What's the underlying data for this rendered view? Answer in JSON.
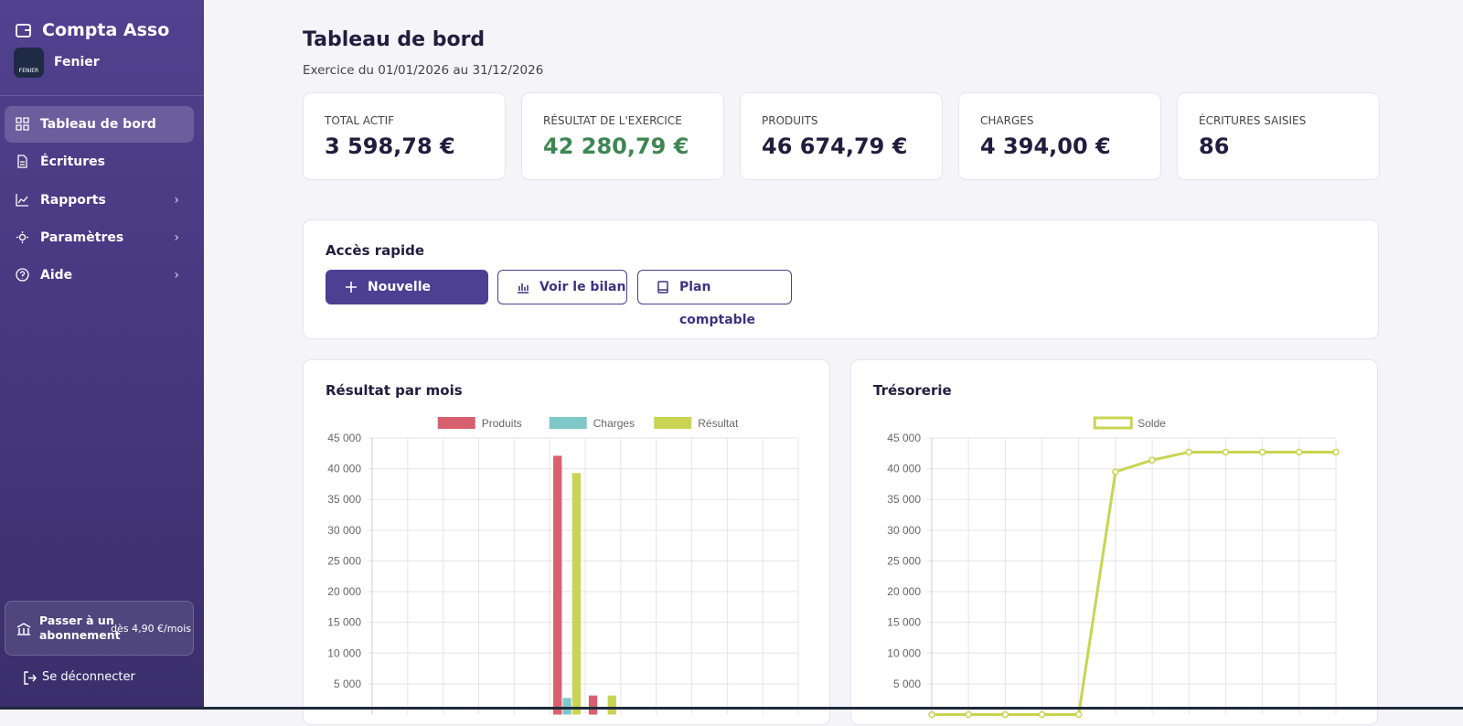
{
  "sidebar": {
    "brand": "Compta Asso",
    "org": "Fenier",
    "logo": "FENIER",
    "nav": [
      "Tableau de bord",
      "Écritures",
      "Rapports",
      "Paramètres",
      "Aide"
    ],
    "upgrade": {
      "title": "Passer à un abonnement",
      "price": "dès 4,90 €/mois"
    },
    "logout": "Se déconnecter"
  },
  "header": {
    "title": "Tableau de bord",
    "subtitle": "Exercice du 01/01/2026 au 31/12/2026"
  },
  "stats": [
    {
      "label": "TOTAL ACTIF",
      "value": "3 598,78 €"
    },
    {
      "label": "RÉSULTAT DE L'EXERCICE",
      "value": "42 280,79 €"
    },
    {
      "label": "PRODUITS",
      "value": "46 674,79 €"
    },
    {
      "label": "CHARGES",
      "value": "4 394,00 €"
    },
    {
      "label": "ÉCRITURES SAISIES",
      "value": "86"
    }
  ],
  "quick": {
    "title": "Accès rapide",
    "buttons": [
      "Nouvelle écriture",
      "Voir le bilan",
      "Plan comptable"
    ]
  },
  "chart_data": [
    {
      "type": "bar",
      "title": "Résultat par mois",
      "categories": [
        null,
        null,
        null,
        null,
        null,
        null,
        null,
        null,
        null,
        null,
        null,
        null
      ],
      "series": [
        {
          "name": "Produits",
          "color": "#d8606e",
          "values": [
            0,
            0,
            0,
            0,
            0,
            42100,
            3100,
            0,
            0,
            0,
            0,
            0
          ]
        },
        {
          "name": "Charges",
          "color": "#7ec8c9",
          "values": [
            0,
            0,
            0,
            0,
            0,
            2700,
            0,
            0,
            0,
            0,
            0,
            0
          ]
        },
        {
          "name": "Résultat",
          "color": "#c9d452",
          "values": [
            0,
            0,
            0,
            0,
            0,
            39300,
            3100,
            0,
            0,
            0,
            0,
            0
          ]
        }
      ],
      "ylim": [
        0,
        45000
      ],
      "yticks": [
        {
          "value": 5000,
          "label": "5 000"
        },
        {
          "value": 10000,
          "label": "10 000"
        },
        {
          "value": 15000,
          "label": "15 000"
        },
        {
          "value": 20000,
          "label": "20 000"
        },
        {
          "value": 25000,
          "label": "25 000"
        },
        {
          "value": 30000,
          "label": "30 000"
        },
        {
          "value": 35000,
          "label": "35 000"
        },
        {
          "value": 40000,
          "label": "40 000"
        },
        {
          "value": 45000,
          "label": "45 000"
        }
      ],
      "grid": true
    },
    {
      "type": "line",
      "title": "Trésorerie",
      "categories": [
        null,
        null,
        null,
        null,
        null,
        null,
        null,
        null,
        null,
        null,
        null,
        null
      ],
      "series": [
        {
          "name": "Solde",
          "color": "#c9d452",
          "values": [
            0,
            0,
            0,
            0,
            0,
            39500,
            41400,
            42700,
            42700,
            42700,
            42700,
            42700
          ]
        }
      ],
      "ylim": [
        0,
        45000
      ],
      "yticks": [
        {
          "value": 5000,
          "label": "5 000"
        },
        {
          "value": 10000,
          "label": "10 000"
        },
        {
          "value": 15000,
          "label": "15 000"
        },
        {
          "value": 20000,
          "label": "20 000"
        },
        {
          "value": 25000,
          "label": "25 000"
        },
        {
          "value": 30000,
          "label": "30 000"
        },
        {
          "value": 35000,
          "label": "35 000"
        },
        {
          "value": 40000,
          "label": "40 000"
        },
        {
          "value": 45000,
          "label": "45 000"
        }
      ],
      "grid": true
    }
  ]
}
